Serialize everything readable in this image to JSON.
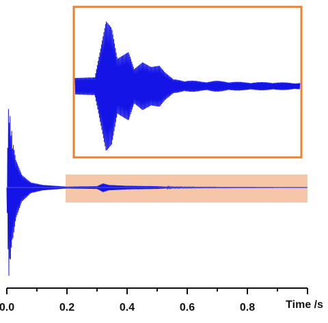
{
  "chart_data": [
    {
      "type": "line",
      "title": "",
      "xlabel": "Time /s",
      "ylabel": "",
      "xlim": [
        0.0,
        1.0
      ],
      "x_ticks": [
        "0.0",
        "0.2",
        "0.4",
        "0.6",
        "0.8"
      ],
      "grid": false,
      "legend": "none",
      "series": [
        {
          "color": "#1414e6",
          "x": [
            0.0,
            0.005,
            0.01,
            0.02,
            0.03,
            0.05,
            0.08,
            0.12,
            0.2,
            0.3,
            0.32,
            0.34,
            0.4,
            0.5,
            0.55,
            0.65,
            0.8,
            1.0
          ],
          "envelope": [
            0.0,
            1.0,
            0.9,
            0.55,
            0.33,
            0.15,
            0.06,
            0.03,
            0.01,
            0.015,
            0.05,
            0.03,
            0.02,
            0.015,
            0.006,
            0.004,
            0.003,
            0.002
          ]
        }
      ],
      "highlight": {
        "x_range": [
          0.2,
          1.0
        ],
        "fill": "#f5c7a8"
      }
    },
    {
      "type": "line",
      "title": "",
      "xlabel": "",
      "ylabel": "",
      "role": "inset zoom of highlighted region",
      "x_range": [
        0.2,
        1.0
      ],
      "border_color": "#e8822e",
      "series": [
        {
          "color": "#1414e6",
          "x": [
            0.2,
            0.27,
            0.31,
            0.33,
            0.35,
            0.39,
            0.41,
            0.44,
            0.47,
            0.5,
            0.52,
            0.55,
            0.6,
            0.65,
            0.7,
            0.8,
            0.9,
            1.0
          ],
          "envelope": [
            0.12,
            0.13,
            0.95,
            0.85,
            0.4,
            0.5,
            0.25,
            0.35,
            0.28,
            0.3,
            0.2,
            0.1,
            0.09,
            0.07,
            0.08,
            0.06,
            0.06,
            0.05
          ]
        }
      ]
    }
  ]
}
